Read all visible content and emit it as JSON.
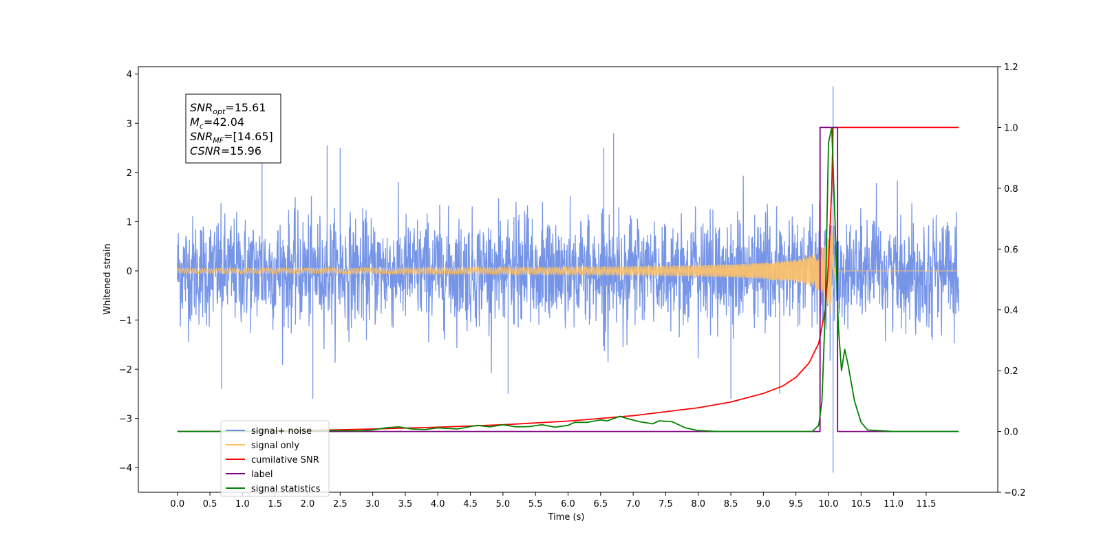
{
  "chart_data": {
    "type": "line",
    "xlabel": "Time (s)",
    "ylabel": "Whitened strain",
    "xlim": [
      -0.6,
      12.6
    ],
    "ylim_left": [
      -4.5,
      4.15
    ],
    "ylim_right": [
      -0.2,
      1.2
    ],
    "x_ticks": [
      0.0,
      0.5,
      1.0,
      1.5,
      2.0,
      2.5,
      3.0,
      3.5,
      4.0,
      4.5,
      5.0,
      5.5,
      6.0,
      6.5,
      7.0,
      7.5,
      8.0,
      8.5,
      9.0,
      9.5,
      10.0,
      10.5,
      11.0,
      11.5
    ],
    "x_tick_labels": [
      "0.0",
      "0.5",
      "1.0",
      "1.5",
      "2.0",
      "2.5",
      "3.0",
      "3.5",
      "4.0",
      "4.5",
      "5.0",
      "5.5",
      "6.0",
      "6.5",
      "7.0",
      "7.5",
      "8.0",
      "8.5",
      "9.0",
      "9.5",
      "10.0",
      "10.5",
      "11.0",
      "11.5"
    ],
    "y_left_ticks": [
      -4,
      -3,
      -2,
      -1,
      0,
      1,
      2,
      3,
      4
    ],
    "y_left_tick_labels": [
      "−4",
      "−3",
      "−2",
      "−1",
      "0",
      "1",
      "2",
      "3",
      "4"
    ],
    "y_right_ticks": [
      -0.2,
      0.0,
      0.2,
      0.4,
      0.6,
      0.8,
      1.0,
      1.2
    ],
    "y_right_tick_labels": [
      "−0.2",
      "0.0",
      "0.2",
      "0.4",
      "0.6",
      "0.8",
      "1.0",
      "1.2"
    ],
    "series": [
      {
        "name": "signal+ noise",
        "color": "#6f8fe6",
        "axis": "left",
        "kind": "noise",
        "time_range": [
          0.0,
          12.0
        ],
        "approx_std": 0.55,
        "peaks": [
          {
            "x": 10.07,
            "y": 3.75
          },
          {
            "x": 10.07,
            "y": -4.1
          },
          {
            "x": 6.7,
            "y": 2.8
          },
          {
            "x": 2.08,
            "y": -2.6
          },
          {
            "x": 0.68,
            "y": -2.4
          },
          {
            "x": 5.08,
            "y": -2.5
          },
          {
            "x": 8.5,
            "y": -2.6
          },
          {
            "x": 9.25,
            "y": -2.5
          },
          {
            "x": 2.3,
            "y": 2.55
          },
          {
            "x": 2.5,
            "y": 2.5
          },
          {
            "x": 1.3,
            "y": 2.3
          },
          {
            "x": 6.55,
            "y": 2.5
          }
        ]
      },
      {
        "name": "signal only",
        "color": "#ffc266",
        "axis": "left",
        "kind": "chirp",
        "time_range": [
          0.0,
          12.0
        ],
        "merger_time": 10.07,
        "peak_amplitude": 0.9
      },
      {
        "name": "cumilative SNR",
        "color": "#ff0000",
        "axis": "right",
        "x": [
          0.0,
          1.0,
          2.0,
          3.0,
          4.0,
          5.0,
          6.0,
          7.0,
          8.0,
          8.5,
          9.0,
          9.3,
          9.5,
          9.7,
          9.85,
          9.95,
          10.0,
          10.05,
          10.07,
          10.08,
          12.0
        ],
        "y": [
          0.0,
          0.0,
          0.003,
          0.008,
          0.014,
          0.022,
          0.034,
          0.052,
          0.078,
          0.097,
          0.125,
          0.15,
          0.178,
          0.225,
          0.29,
          0.4,
          0.55,
          0.8,
          1.0,
          1.0,
          1.0
        ]
      },
      {
        "name": "label",
        "color": "#800080",
        "axis": "right",
        "x": [
          0.0,
          9.87,
          9.87,
          10.14,
          10.14,
          12.0
        ],
        "y": [
          0.0,
          0.0,
          1.0,
          1.0,
          0.0,
          0.0
        ]
      },
      {
        "name": "signal statistics",
        "color": "#008000",
        "axis": "right",
        "x": [
          0.0,
          2.0,
          2.4,
          2.8,
          3.0,
          3.2,
          3.4,
          3.6,
          3.8,
          4.0,
          4.3,
          4.6,
          4.8,
          5.0,
          5.2,
          5.4,
          5.6,
          5.8,
          6.0,
          6.1,
          6.3,
          6.5,
          6.6,
          6.8,
          6.9,
          7.1,
          7.3,
          7.4,
          7.6,
          7.8,
          8.0,
          8.3,
          8.6,
          9.0,
          9.5,
          9.75,
          9.85,
          9.9,
          9.95,
          10.0,
          10.05,
          10.1,
          10.15,
          10.2,
          10.25,
          10.3,
          10.4,
          10.5,
          10.6,
          11.0,
          11.5,
          12.0
        ],
        "y": [
          0.0,
          0.0,
          0.003,
          0.002,
          0.005,
          0.012,
          0.015,
          0.008,
          0.006,
          0.012,
          0.008,
          0.02,
          0.015,
          0.022,
          0.015,
          0.016,
          0.022,
          0.014,
          0.02,
          0.03,
          0.03,
          0.038,
          0.035,
          0.05,
          0.043,
          0.032,
          0.025,
          0.035,
          0.032,
          0.012,
          0.003,
          0.0,
          0.0,
          0.0,
          0.0,
          0.0,
          0.02,
          0.1,
          0.4,
          0.95,
          1.0,
          0.7,
          0.35,
          0.2,
          0.27,
          0.22,
          0.1,
          0.03,
          0.005,
          0.0,
          0.0,
          0.0
        ]
      }
    ],
    "annotation": {
      "lines": [
        {
          "main": "SNR",
          "sub": "opt",
          "rest": "=15.61"
        },
        {
          "main": "M",
          "sub": "c",
          "rest": "=42.04"
        },
        {
          "main": "SNR",
          "sub": "MF",
          "rest": "=[14.65]"
        },
        {
          "main": "CSNR",
          "sub": "",
          "rest": "=15.96"
        }
      ]
    },
    "legend": {
      "placement": "lower-left",
      "entries": [
        {
          "label": "signal+ noise",
          "color": "#6f8fe6"
        },
        {
          "label": "signal only",
          "color": "#ffc266"
        },
        {
          "label": "cumilative SNR",
          "color": "#ff0000"
        },
        {
          "label": "label",
          "color": "#800080"
        },
        {
          "label": "signal statistics",
          "color": "#008000"
        }
      ]
    },
    "grid": false
  }
}
